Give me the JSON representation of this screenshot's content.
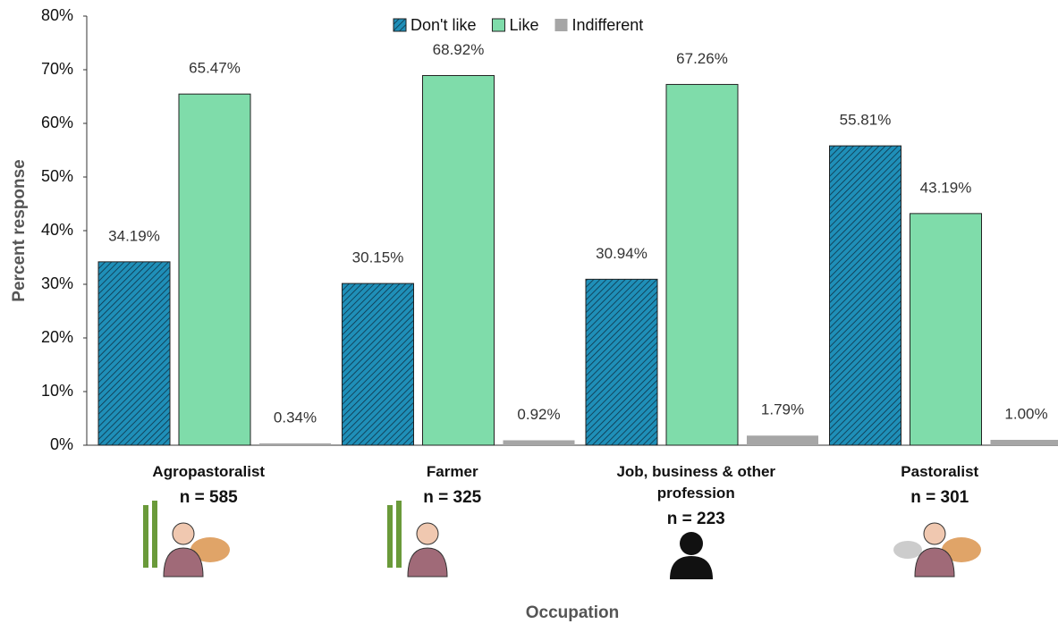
{
  "chart_data": {
    "type": "bar",
    "x_label": "Occupation",
    "y_label": "Percent response",
    "categories": [
      "Agropastoralist",
      "Farmer",
      "Job, business & other profession",
      "Pastoralist"
    ],
    "sample_sizes": [
      "n = 585",
      "n = 325",
      "n = 223",
      "n = 301"
    ],
    "series": [
      {
        "name": "Don't like",
        "color": "#1f8fb8",
        "hatch": true,
        "values": [
          34.19,
          30.15,
          30.94,
          55.81
        ],
        "value_labels": [
          "34.19%",
          "30.15%",
          "30.94%",
          "55.81%"
        ]
      },
      {
        "name": "Like",
        "color": "#7fdcaa",
        "hatch": false,
        "values": [
          65.47,
          68.92,
          67.26,
          43.19
        ],
        "value_labels": [
          "65.47%",
          "68.92%",
          "67.26%",
          "43.19%"
        ]
      },
      {
        "name": "Indifferent",
        "color": "#a6a6a6",
        "hatch": false,
        "values": [
          0.34,
          0.92,
          1.79,
          1.0
        ],
        "value_labels": [
          "0.34%",
          "0.92%",
          "1.79%",
          "1.00%"
        ]
      }
    ],
    "ylim": [
      0,
      80
    ],
    "yticks": [
      {
        "value": 0,
        "label": "0%"
      },
      {
        "value": 10,
        "label": "10%"
      },
      {
        "value": 20,
        "label": "20%"
      },
      {
        "value": 30,
        "label": "30%"
      },
      {
        "value": 40,
        "label": "40%"
      },
      {
        "value": 50,
        "label": "50%"
      },
      {
        "value": 60,
        "label": "60%"
      },
      {
        "value": 70,
        "label": "70%"
      },
      {
        "value": 80,
        "label": "80%"
      }
    ],
    "legend": "top"
  }
}
